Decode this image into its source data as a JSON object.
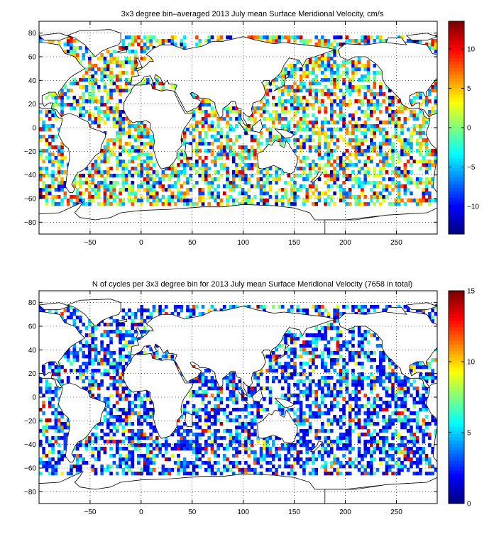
{
  "chart_data": [
    {
      "type": "heatmap",
      "title": "3x3 degree bin–averaged 2013 July mean Surface Meridional Velocity, cm/s",
      "xlabel": "",
      "ylabel": "",
      "xlim": [
        -100,
        290
      ],
      "ylim": [
        -90,
        90
      ],
      "x_ticks": [
        -50,
        0,
        50,
        100,
        150,
        200,
        250
      ],
      "y_ticks": [
        -80,
        -60,
        -40,
        -20,
        0,
        20,
        40,
        60,
        80
      ],
      "x_tick_labels": [
        "−50",
        "0",
        "50",
        "100",
        "150",
        "200",
        "250"
      ],
      "y_tick_labels": [
        "−80",
        "−60",
        "−40",
        "−20",
        "0",
        "20",
        "40",
        "60",
        "80"
      ],
      "bin_size_deg": 3,
      "grid": "dotted",
      "colormap": "jet",
      "colorbar": {
        "min": -13.5,
        "max": 13.5,
        "ticks": [
          -10,
          -5,
          0,
          5,
          10
        ],
        "tick_labels": [
          "−10",
          "−5",
          "0",
          "5",
          "10"
        ],
        "placement": "right"
      },
      "field": "surface_meridional_velocity"
    },
    {
      "type": "heatmap",
      "title": "N of cycles per 3x3 degree bin for 2013 July mean Surface Meridional Velocity (7658 in total)",
      "xlabel": "",
      "ylabel": "",
      "xlim": [
        -100,
        290
      ],
      "ylim": [
        -90,
        90
      ],
      "x_ticks": [
        -50,
        0,
        50,
        100,
        150,
        200,
        250
      ],
      "y_ticks": [
        -80,
        -60,
        -40,
        -20,
        0,
        20,
        40,
        60,
        80
      ],
      "x_tick_labels": [
        "−50",
        "0",
        "50",
        "100",
        "150",
        "200",
        "250"
      ],
      "y_tick_labels": [
        "−80",
        "−60",
        "−40",
        "−20",
        "0",
        "20",
        "40",
        "60",
        "80"
      ],
      "bin_size_deg": 3,
      "grid": "dotted",
      "colormap": "jet",
      "colorbar": {
        "min": 0,
        "max": 15,
        "ticks": [
          0,
          5,
          10,
          15
        ],
        "tick_labels": [
          "0",
          "5",
          "10",
          "15"
        ],
        "placement": "right"
      },
      "total_cycles": 7658,
      "field": "cycle_count"
    }
  ]
}
